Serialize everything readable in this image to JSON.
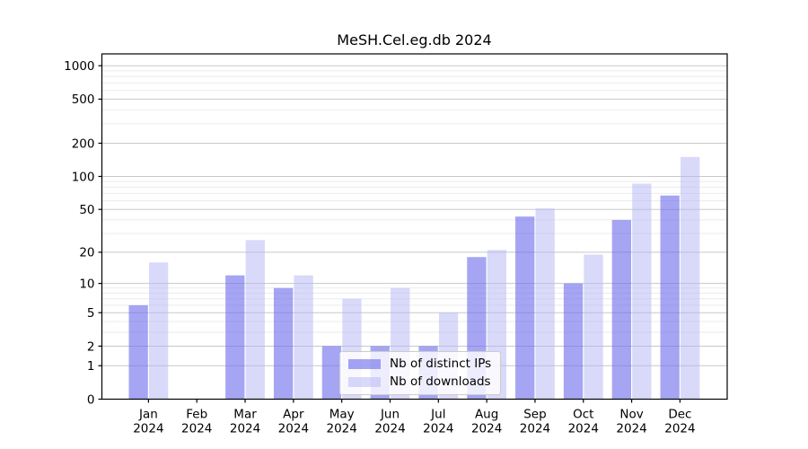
{
  "chart_data": {
    "type": "bar",
    "title": "MeSH.Cel.eg.db 2024",
    "categories": [
      "Jan",
      "Feb",
      "Mar",
      "Apr",
      "May",
      "Jun",
      "Jul",
      "Aug",
      "Sep",
      "Oct",
      "Nov",
      "Dec"
    ],
    "category_year": "2024",
    "series": [
      {
        "name": "Nb of distinct IPs",
        "color": "#6e6eee",
        "alpha": 0.62,
        "values": [
          6,
          0,
          12,
          9,
          2,
          2,
          2,
          18,
          43,
          10,
          40,
          67
        ]
      },
      {
        "name": "Nb of downloads",
        "color": "#b4b4f5",
        "alpha": 0.5,
        "values": [
          16,
          0,
          26,
          12,
          7,
          9,
          5,
          21,
          51,
          19,
          86,
          150
        ]
      }
    ],
    "yscale": "log1p",
    "ytick_labels": [
      0,
      1,
      2,
      5,
      10,
      20,
      50,
      100,
      200,
      500,
      1000
    ],
    "yminor_gridlines": [
      3,
      4,
      6,
      7,
      8,
      9,
      30,
      40,
      60,
      70,
      80,
      90,
      300,
      400,
      600,
      700,
      800,
      900
    ],
    "ylim": [
      0,
      1280
    ],
    "grid": true,
    "legend_position": "lower center",
    "style": {
      "major_grid_color": "#c8c8c8",
      "minor_grid_color": "#ebebeb",
      "spine_color": "#000000",
      "text_color": "#000000",
      "background": "#ffffff"
    }
  }
}
